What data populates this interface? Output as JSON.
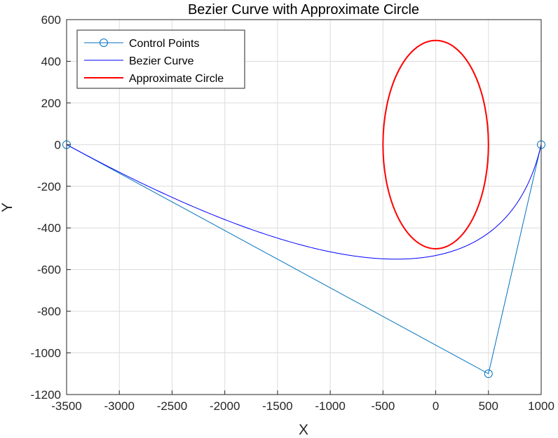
{
  "chart_data": {
    "type": "line",
    "title": "Bezier Curve with Approximate Circle",
    "xlabel": "X",
    "ylabel": "Y",
    "xlim": [
      -3500,
      1000
    ],
    "ylim": [
      -1200,
      600
    ],
    "xticks": [
      -3500,
      -3000,
      -2500,
      -2000,
      -1500,
      -1000,
      -500,
      0,
      500,
      1000
    ],
    "yticks": [
      -1200,
      -1000,
      -800,
      -600,
      -400,
      -200,
      0,
      200,
      400,
      600
    ],
    "xtick_labels": [
      "-3500",
      "-3000",
      "-2500",
      "-2000",
      "-1500",
      "-1000",
      "-500",
      "0",
      "500",
      "1000"
    ],
    "ytick_labels": [
      "-1200",
      "-1000",
      "-800",
      "-600",
      "-400",
      "-200",
      "0",
      "200",
      "400",
      "600"
    ],
    "grid": true,
    "legend_position": "top-left",
    "series": [
      {
        "name": "Control Points",
        "kind": "line-with-circle-markers",
        "color": "#0072BD",
        "x": [
          -3500,
          500,
          1000
        ],
        "y": [
          0,
          -1100,
          0
        ]
      },
      {
        "name": "Bezier Curve",
        "kind": "quadratic-bezier",
        "color": "#0000FF",
        "control_x": [
          -3500,
          500,
          1000
        ],
        "control_y": [
          0,
          -1100,
          0
        ]
      },
      {
        "name": "Approximate Circle",
        "kind": "ellipse",
        "color": "#FF0000",
        "center": [
          0,
          0
        ],
        "radius_x": 500,
        "radius_y": 500
      }
    ]
  }
}
